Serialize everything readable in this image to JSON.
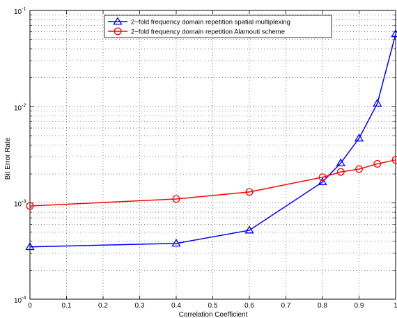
{
  "chart_data": {
    "type": "line",
    "title": "",
    "xlabel": "Correlation Coefficient",
    "ylabel": "Bit Error Rate",
    "xlim": [
      0,
      1
    ],
    "ylim": [
      0.0001,
      0.1
    ],
    "yscale": "log",
    "grid": true,
    "legend_position": "top-center",
    "x_ticks": [
      0,
      0.1,
      0.2,
      0.3,
      0.4,
      0.5,
      0.6,
      0.7,
      0.8,
      0.9,
      1
    ],
    "x_tick_labels": [
      "0",
      "0.1",
      "0.2",
      "0.3",
      "0.4",
      "0.5",
      "0.6",
      "0.7",
      "0.8",
      "0.9",
      "1"
    ],
    "y_ticks": [
      {
        "value": 0.0001,
        "base": "10",
        "exp": "-4"
      },
      {
        "value": 0.001,
        "base": "10",
        "exp": "-3"
      },
      {
        "value": 0.01,
        "base": "10",
        "exp": "-2"
      },
      {
        "value": 0.1,
        "base": "10",
        "exp": "-1"
      }
    ],
    "series": [
      {
        "name": "2−fold frequency domain repetition spatial multiplexing",
        "color": "#0000ff",
        "marker": "triangle",
        "x": [
          0,
          0.4,
          0.6,
          0.8,
          0.85,
          0.9,
          0.95,
          1
        ],
        "y": [
          0.00035,
          0.00038,
          0.00052,
          0.00165,
          0.0026,
          0.0047,
          0.0108,
          0.057
        ]
      },
      {
        "name": "2−fold frequency domain repetition Alamouti scheme",
        "color": "#ff0000",
        "marker": "circle",
        "x": [
          0,
          0.4,
          0.6,
          0.8,
          0.85,
          0.9,
          0.95,
          1
        ],
        "y": [
          0.00093,
          0.0011,
          0.0013,
          0.00185,
          0.0021,
          0.00225,
          0.00255,
          0.0028
        ]
      }
    ]
  }
}
